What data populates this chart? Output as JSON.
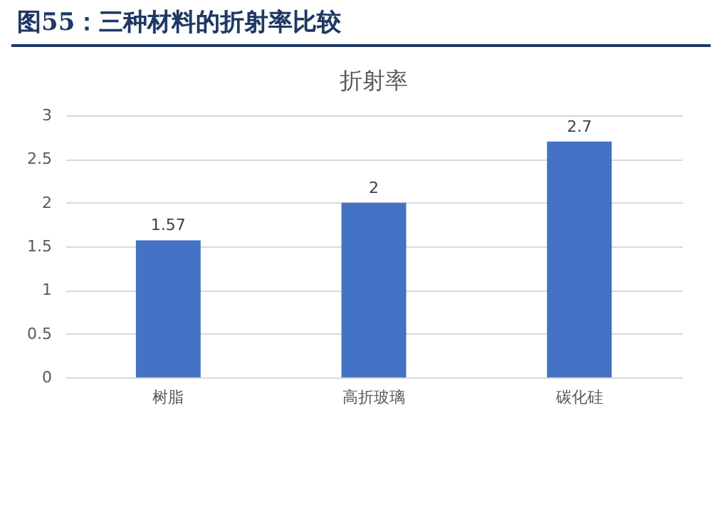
{
  "chart_data": {
    "type": "bar",
    "title": "图55：三种材料的折射率比较",
    "subtitle": "折射率",
    "categories": [
      "树脂",
      "高折玻璃",
      "碳化硅"
    ],
    "values": [
      1.57,
      2,
      2.7
    ],
    "color": "#4472c4",
    "ylim": [
      0,
      3
    ],
    "yticks": [
      0,
      0.5,
      1,
      1.5,
      2,
      2.5,
      3
    ],
    "grid": "y",
    "data_labels": true
  }
}
